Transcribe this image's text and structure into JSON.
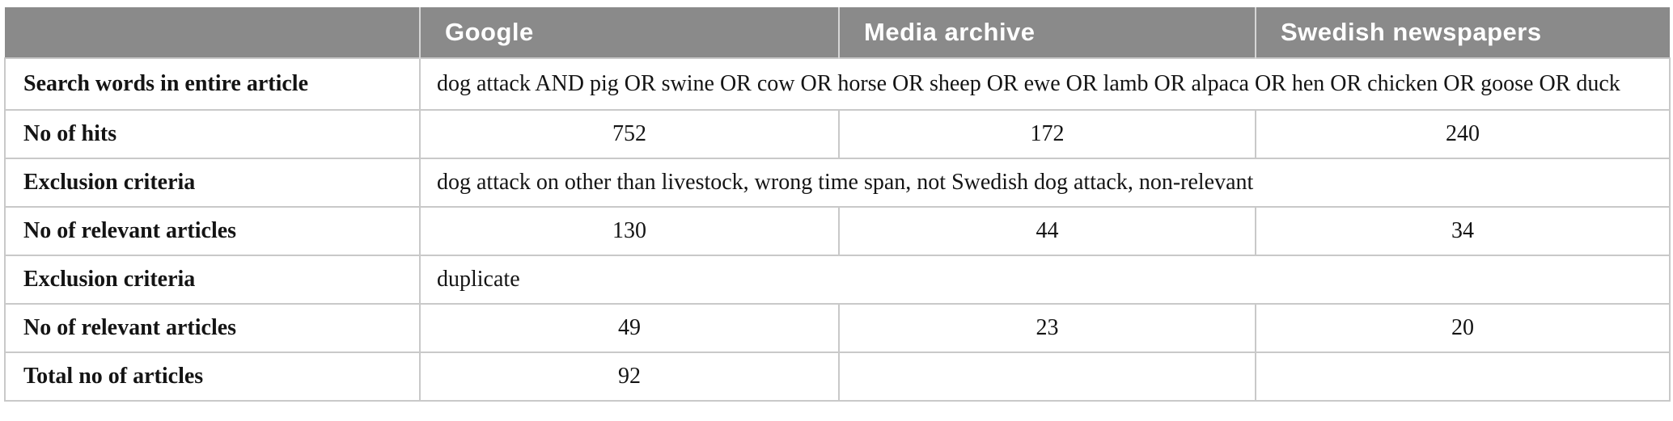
{
  "colors": {
    "header_background": "#8a8a8a",
    "header_text": "#ffffff",
    "body_border": "#c9c9c9",
    "header_divider": "#d6d6d6",
    "body_text": "#141414",
    "page_background": "#ffffff"
  },
  "table": {
    "columns": [
      "",
      "Google",
      "Media archive",
      "Swedish newspapers"
    ],
    "rows": [
      {
        "label": "Search words in entire article",
        "type": "span",
        "value": "dog attack AND pig OR swine OR cow OR horse OR sheep OR ewe OR lamb OR alpaca OR hen OR chicken OR goose OR duck"
      },
      {
        "label": "No of hits",
        "type": "cells",
        "values": [
          "752",
          "172",
          "240"
        ]
      },
      {
        "label": "Exclusion criteria",
        "type": "span",
        "value": "dog attack on other than livestock, wrong time span, not Swedish dog attack, non-relevant"
      },
      {
        "label": "No of relevant articles",
        "type": "cells",
        "values": [
          "130",
          "44",
          "34"
        ]
      },
      {
        "label": "Exclusion criteria",
        "type": "span",
        "value": "duplicate"
      },
      {
        "label": "No of relevant articles",
        "type": "cells",
        "values": [
          "49",
          "23",
          "20"
        ]
      },
      {
        "label": "Total no of articles",
        "type": "cells",
        "values": [
          "92",
          "",
          ""
        ]
      }
    ]
  }
}
